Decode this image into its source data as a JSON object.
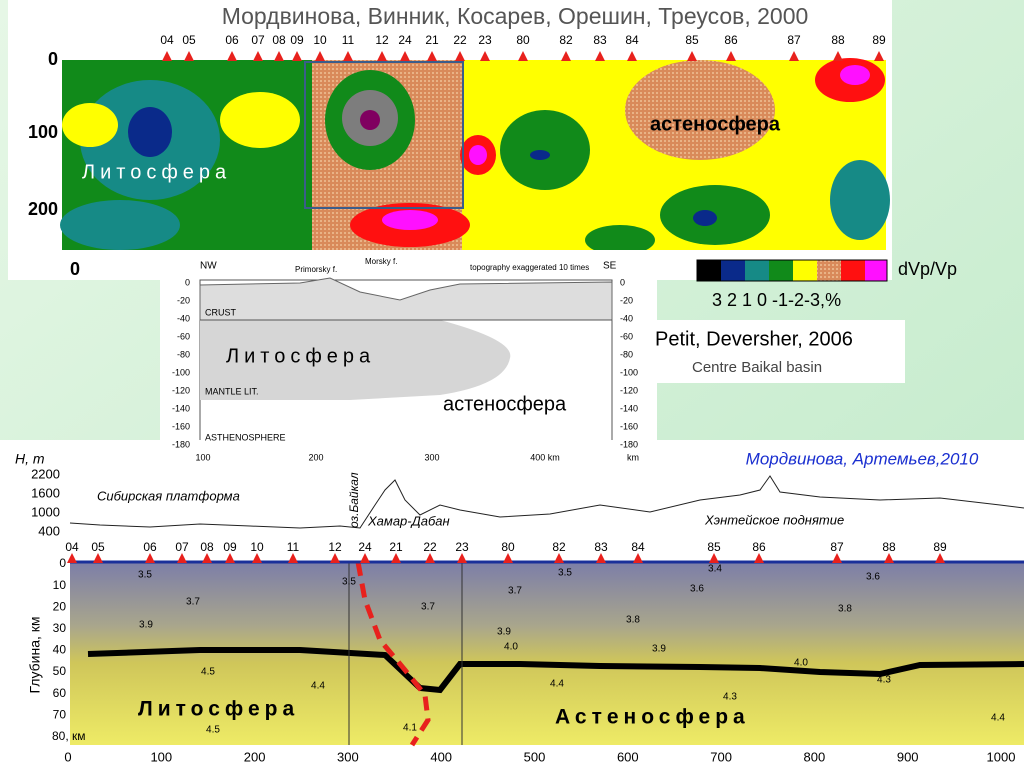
{
  "top": {
    "title": "Мордвинова, Винник, Косарев, Орешин, Треусов, 2000",
    "stations": [
      "04",
      "05",
      "06",
      "07",
      "08",
      "09",
      "10",
      "11",
      "12",
      "24",
      "21",
      "22",
      "23",
      "80",
      "82",
      "83",
      "84",
      "85",
      "86",
      "87",
      "88",
      "89"
    ],
    "yticks": [
      "0",
      "100",
      "200"
    ],
    "xtick": "0",
    "litho": "Литосфера",
    "astheno": "астеносфера",
    "legend_title": "dVp/Vp",
    "legend_scale": "3  2  1  0 -1-2-3,%"
  },
  "middle": {
    "nw": "NW",
    "se": "SE",
    "fault1": "Primorsky f.",
    "fault2": "Morsky f.",
    "note": "topography exaggerated 10 times",
    "yticks": [
      "0",
      "-20",
      "-40",
      "-60",
      "-80",
      "-100",
      "-120",
      "-140",
      "-160",
      "-180"
    ],
    "xticks": [
      "100",
      "200",
      "300",
      "400 km"
    ],
    "xunit": "km",
    "crust": "CRUST",
    "mantle": "MANTLE LIT.",
    "asthenosphere": "ASTHENOSPHERE",
    "litho": "Литосфера",
    "astheno": "астеносфера",
    "source": "Petit, Deversher, 2006",
    "subtitle": "Centre Baikal basin"
  },
  "bottom": {
    "title": "Мордвинова, Артемьев,2010",
    "h_label": "H, m",
    "h_ticks": [
      "2200",
      "1600",
      "1000",
      "400"
    ],
    "platform": "Сибирская платформа",
    "lake": "оз.Байкал",
    "khamar": "Хамар-Дабан",
    "khentei": "Хэнтейское поднятие",
    "stations": [
      "04",
      "05",
      "06",
      "07",
      "08",
      "09",
      "10",
      "11",
      "12",
      "24",
      "21",
      "22",
      "23",
      "80",
      "82",
      "83",
      "84",
      "85",
      "86",
      "87",
      "88",
      "89"
    ],
    "depth_label": "Глубина, км",
    "yticks": [
      "0",
      "10",
      "20",
      "30",
      "40",
      "50",
      "60",
      "70",
      "80, км"
    ],
    "xticks": [
      "0",
      "100",
      "200",
      "300",
      "400",
      "500",
      "600",
      "700",
      "800",
      "900",
      "1000"
    ],
    "contours": [
      "3.5",
      "3.5",
      "3.5",
      "3.4",
      "3.6",
      "3.7",
      "3.7",
      "3.7",
      "3.6",
      "3.9",
      "3.8",
      "3.8",
      "3.9",
      "4.0",
      "3.9",
      "4.0",
      "4.5",
      "4.4",
      "4.4",
      "4.3",
      "4.3",
      "4.5",
      "4.4",
      "4.1"
    ],
    "litho": "Литосфера",
    "astheno": "Астеносфера"
  }
}
